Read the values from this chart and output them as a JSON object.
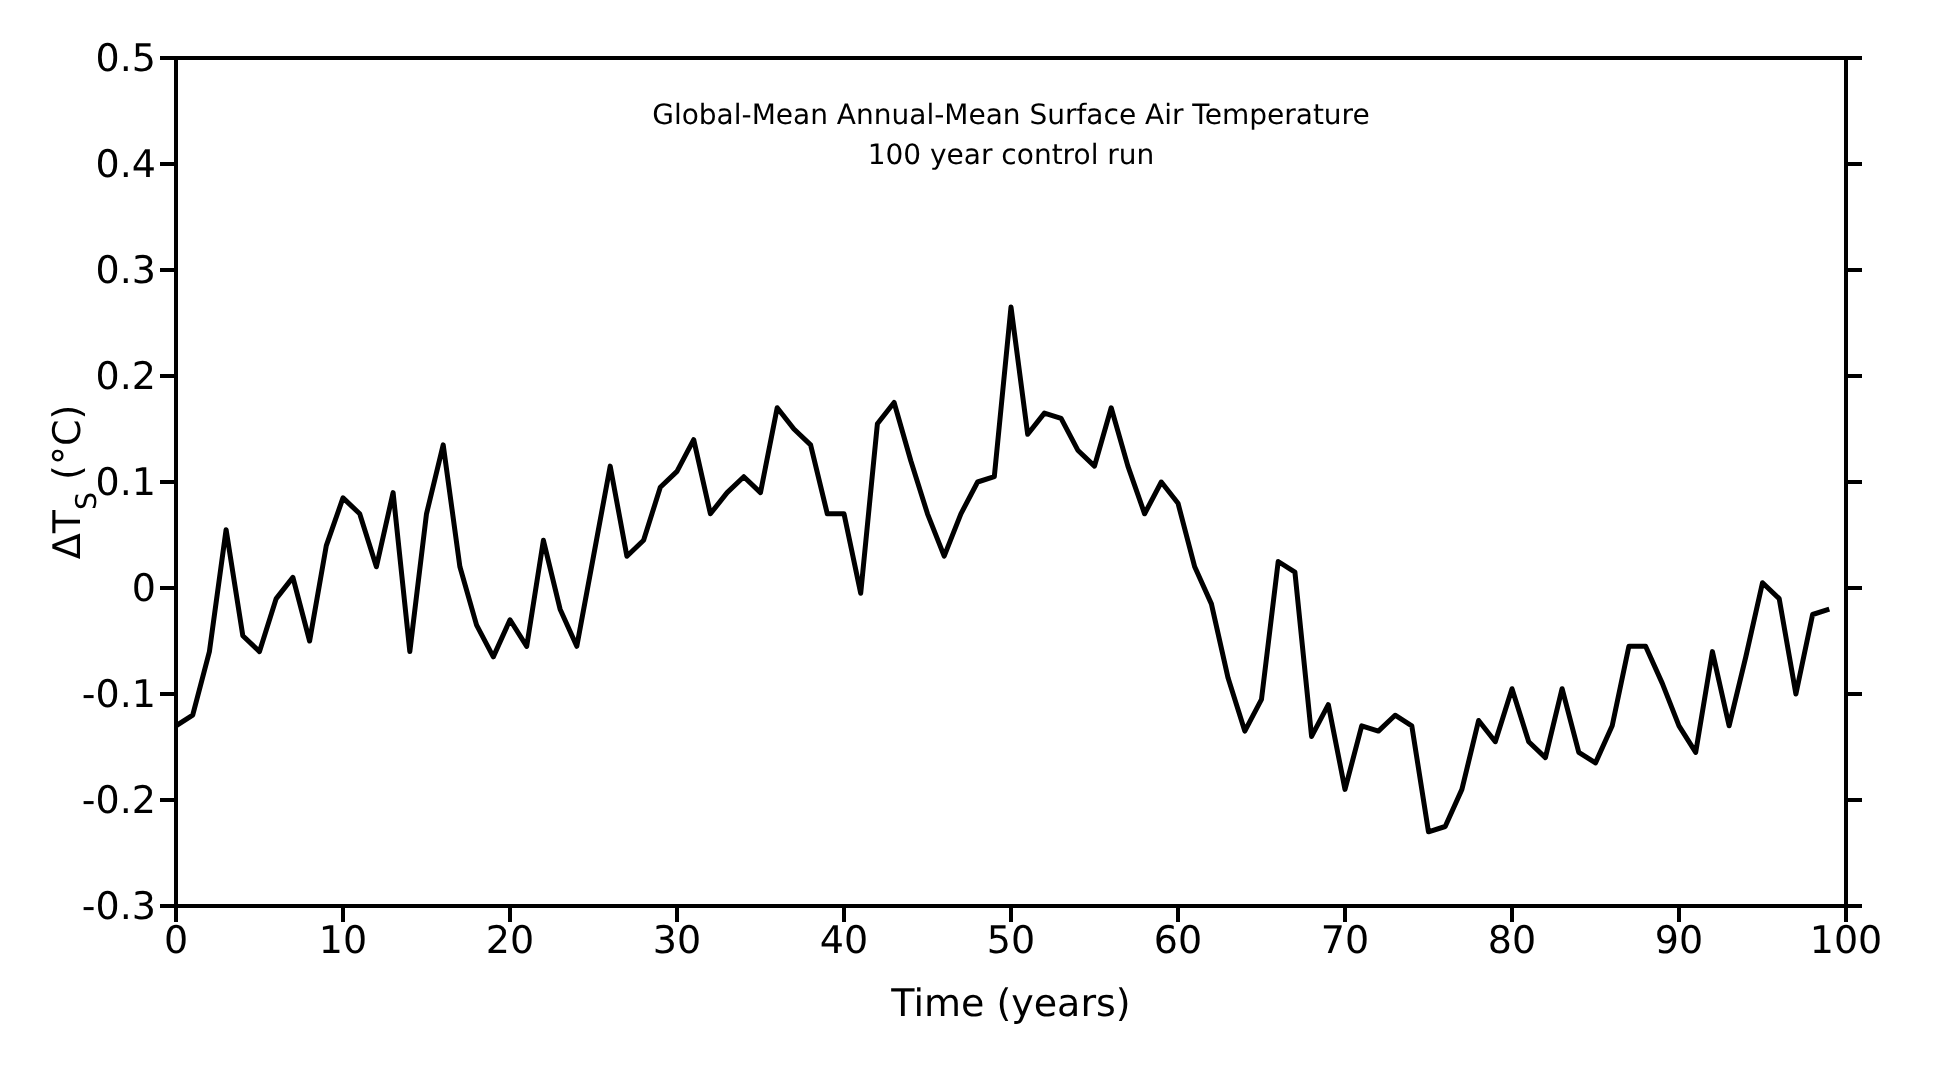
{
  "chart_data": {
    "type": "line",
    "title": "Global-Mean Annual-Mean Surface Air Temperature",
    "subtitle": "100 year control run",
    "xlabel": "Time (years)",
    "ylabel": "ΔT$_{S}$ (°C)",
    "x": [
      0,
      1,
      2,
      3,
      4,
      5,
      6,
      7,
      8,
      9,
      10,
      11,
      12,
      13,
      14,
      15,
      16,
      17,
      18,
      19,
      20,
      21,
      22,
      23,
      24,
      25,
      26,
      27,
      28,
      29,
      30,
      31,
      32,
      33,
      34,
      35,
      36,
      37,
      38,
      39,
      40,
      41,
      42,
      43,
      44,
      45,
      46,
      47,
      48,
      49,
      50,
      51,
      52,
      53,
      54,
      55,
      56,
      57,
      58,
      59,
      60,
      61,
      62,
      63,
      64,
      65,
      66,
      67,
      68,
      69,
      70,
      71,
      72,
      73,
      74,
      75,
      76,
      77,
      78,
      79,
      80,
      81,
      82,
      83,
      84,
      85,
      86,
      87,
      88,
      89,
      90,
      91,
      92,
      93,
      94,
      95,
      96,
      97,
      98,
      99
    ],
    "series": [
      {
        "color": "#000000",
        "values": [
          -0.13,
          -0.12,
          -0.06,
          0.055,
          -0.045,
          -0.06,
          -0.01,
          0.01,
          -0.05,
          0.04,
          0.085,
          0.07,
          0.02,
          0.09,
          -0.06,
          0.07,
          0.135,
          0.02,
          -0.035,
          -0.065,
          -0.03,
          -0.055,
          0.045,
          -0.02,
          -0.055,
          0.03,
          0.115,
          0.03,
          0.045,
          0.095,
          0.11,
          0.14,
          0.07,
          0.09,
          0.105,
          0.09,
          0.17,
          0.15,
          0.135,
          0.07,
          0.07,
          -0.005,
          0.155,
          0.175,
          0.12,
          0.07,
          0.03,
          0.07,
          0.1,
          0.105,
          0.265,
          0.145,
          0.165,
          0.16,
          0.13,
          0.115,
          0.17,
          0.115,
          0.07,
          0.1,
          0.08,
          0.02,
          -0.015,
          -0.085,
          -0.135,
          -0.105,
          0.025,
          0.015,
          -0.14,
          -0.11,
          -0.19,
          -0.13,
          -0.135,
          -0.12,
          -0.13,
          -0.23,
          -0.225,
          -0.19,
          -0.125,
          -0.145,
          -0.095,
          -0.145,
          -0.16,
          -0.095,
          -0.155,
          -0.165,
          -0.13,
          -0.055,
          -0.055,
          -0.09,
          -0.13,
          -0.155,
          -0.06,
          -0.13,
          -0.065,
          0.005,
          -0.01,
          -0.1,
          -0.025,
          -0.02
        ]
      }
    ],
    "xlim": [
      0,
      100
    ],
    "xticks": [
      0,
      10,
      20,
      30,
      40,
      50,
      60,
      70,
      80,
      90,
      100
    ],
    "ylim": [
      -0.3,
      0.5
    ],
    "yticks": [
      -0.3,
      -0.2,
      -0.1,
      0,
      0.1,
      0.2,
      0.3,
      0.4,
      0.5
    ],
    "grid": false,
    "legend": false,
    "marker": "none",
    "line_style": "solid"
  }
}
